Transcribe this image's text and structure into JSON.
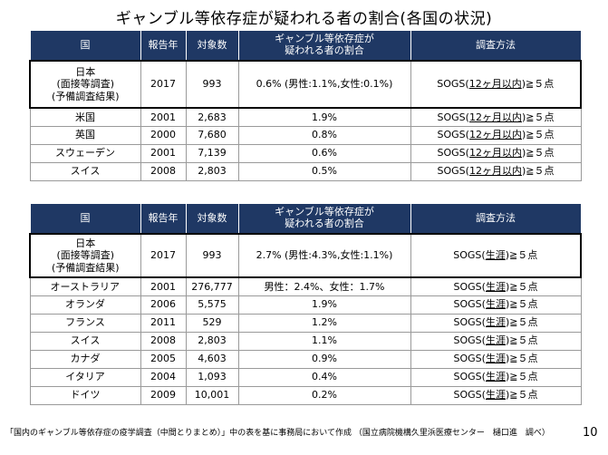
{
  "title": "ギャンブル等依存症が疑われる者の割合(各国の状況)",
  "headers": {
    "country": "国",
    "year": "報告年",
    "count": "対象数",
    "rate_l1": "ギャンブル等依存症が",
    "rate_l2": "疑われる者の割合",
    "method": "調査方法"
  },
  "table1": {
    "japan": {
      "name_l1": "日本",
      "name_l2": "(面接等調査)",
      "name_l3": "(予備調査結果)",
      "year": "2017",
      "count": "993",
      "rate": "0.6% (男性:1.1%,女性:0.1%)",
      "method_pre": "SOGS(",
      "method_ul": "12ヶ月以内",
      "method_post": ")≧５点"
    },
    "rows": [
      {
        "country": "米国",
        "year": "2001",
        "count": "2,683",
        "rate": "1.9%"
      },
      {
        "country": "英国",
        "year": "2000",
        "count": "7,680",
        "rate": "0.8%"
      },
      {
        "country": "スウェーデン",
        "year": "2001",
        "count": "7,139",
        "rate": "0.6%"
      },
      {
        "country": "スイス",
        "year": "2008",
        "count": "2,803",
        "rate": "0.5%"
      }
    ]
  },
  "table2": {
    "japan": {
      "name_l1": "日本",
      "name_l2": "(面接等調査)",
      "name_l3": "(予備調査結果)",
      "year": "2017",
      "count": "993",
      "rate": "2.7% (男性:4.3%,女性:1.1%)",
      "method_pre": "SOGS(",
      "method_ul": "生涯",
      "method_post": ")≧５点"
    },
    "rows": [
      {
        "country": "オーストラリア",
        "year": "2001",
        "count": "276,777",
        "rate": "男性：2.4%、女性：1.7%"
      },
      {
        "country": "オランダ",
        "year": "2006",
        "count": "5,575",
        "rate": "1.9%"
      },
      {
        "country": "フランス",
        "year": "2011",
        "count": "529",
        "rate": "1.2%"
      },
      {
        "country": "スイス",
        "year": "2008",
        "count": "2,803",
        "rate": "1.1%"
      },
      {
        "country": "カナダ",
        "year": "2005",
        "count": "4,603",
        "rate": "0.9%"
      },
      {
        "country": "イタリア",
        "year": "2004",
        "count": "1,093",
        "rate": "0.4%"
      },
      {
        "country": "ドイツ",
        "year": "2009",
        "count": "10,001",
        "rate": "0.2%"
      }
    ]
  },
  "footnote": "「国内のギャンブル等依存症の疫学調査（中間とりまとめ）」中の表を基に事務局において作成 （国立病院機構久里浜医療センター　樋口進　調べ）",
  "page_number": "10"
}
